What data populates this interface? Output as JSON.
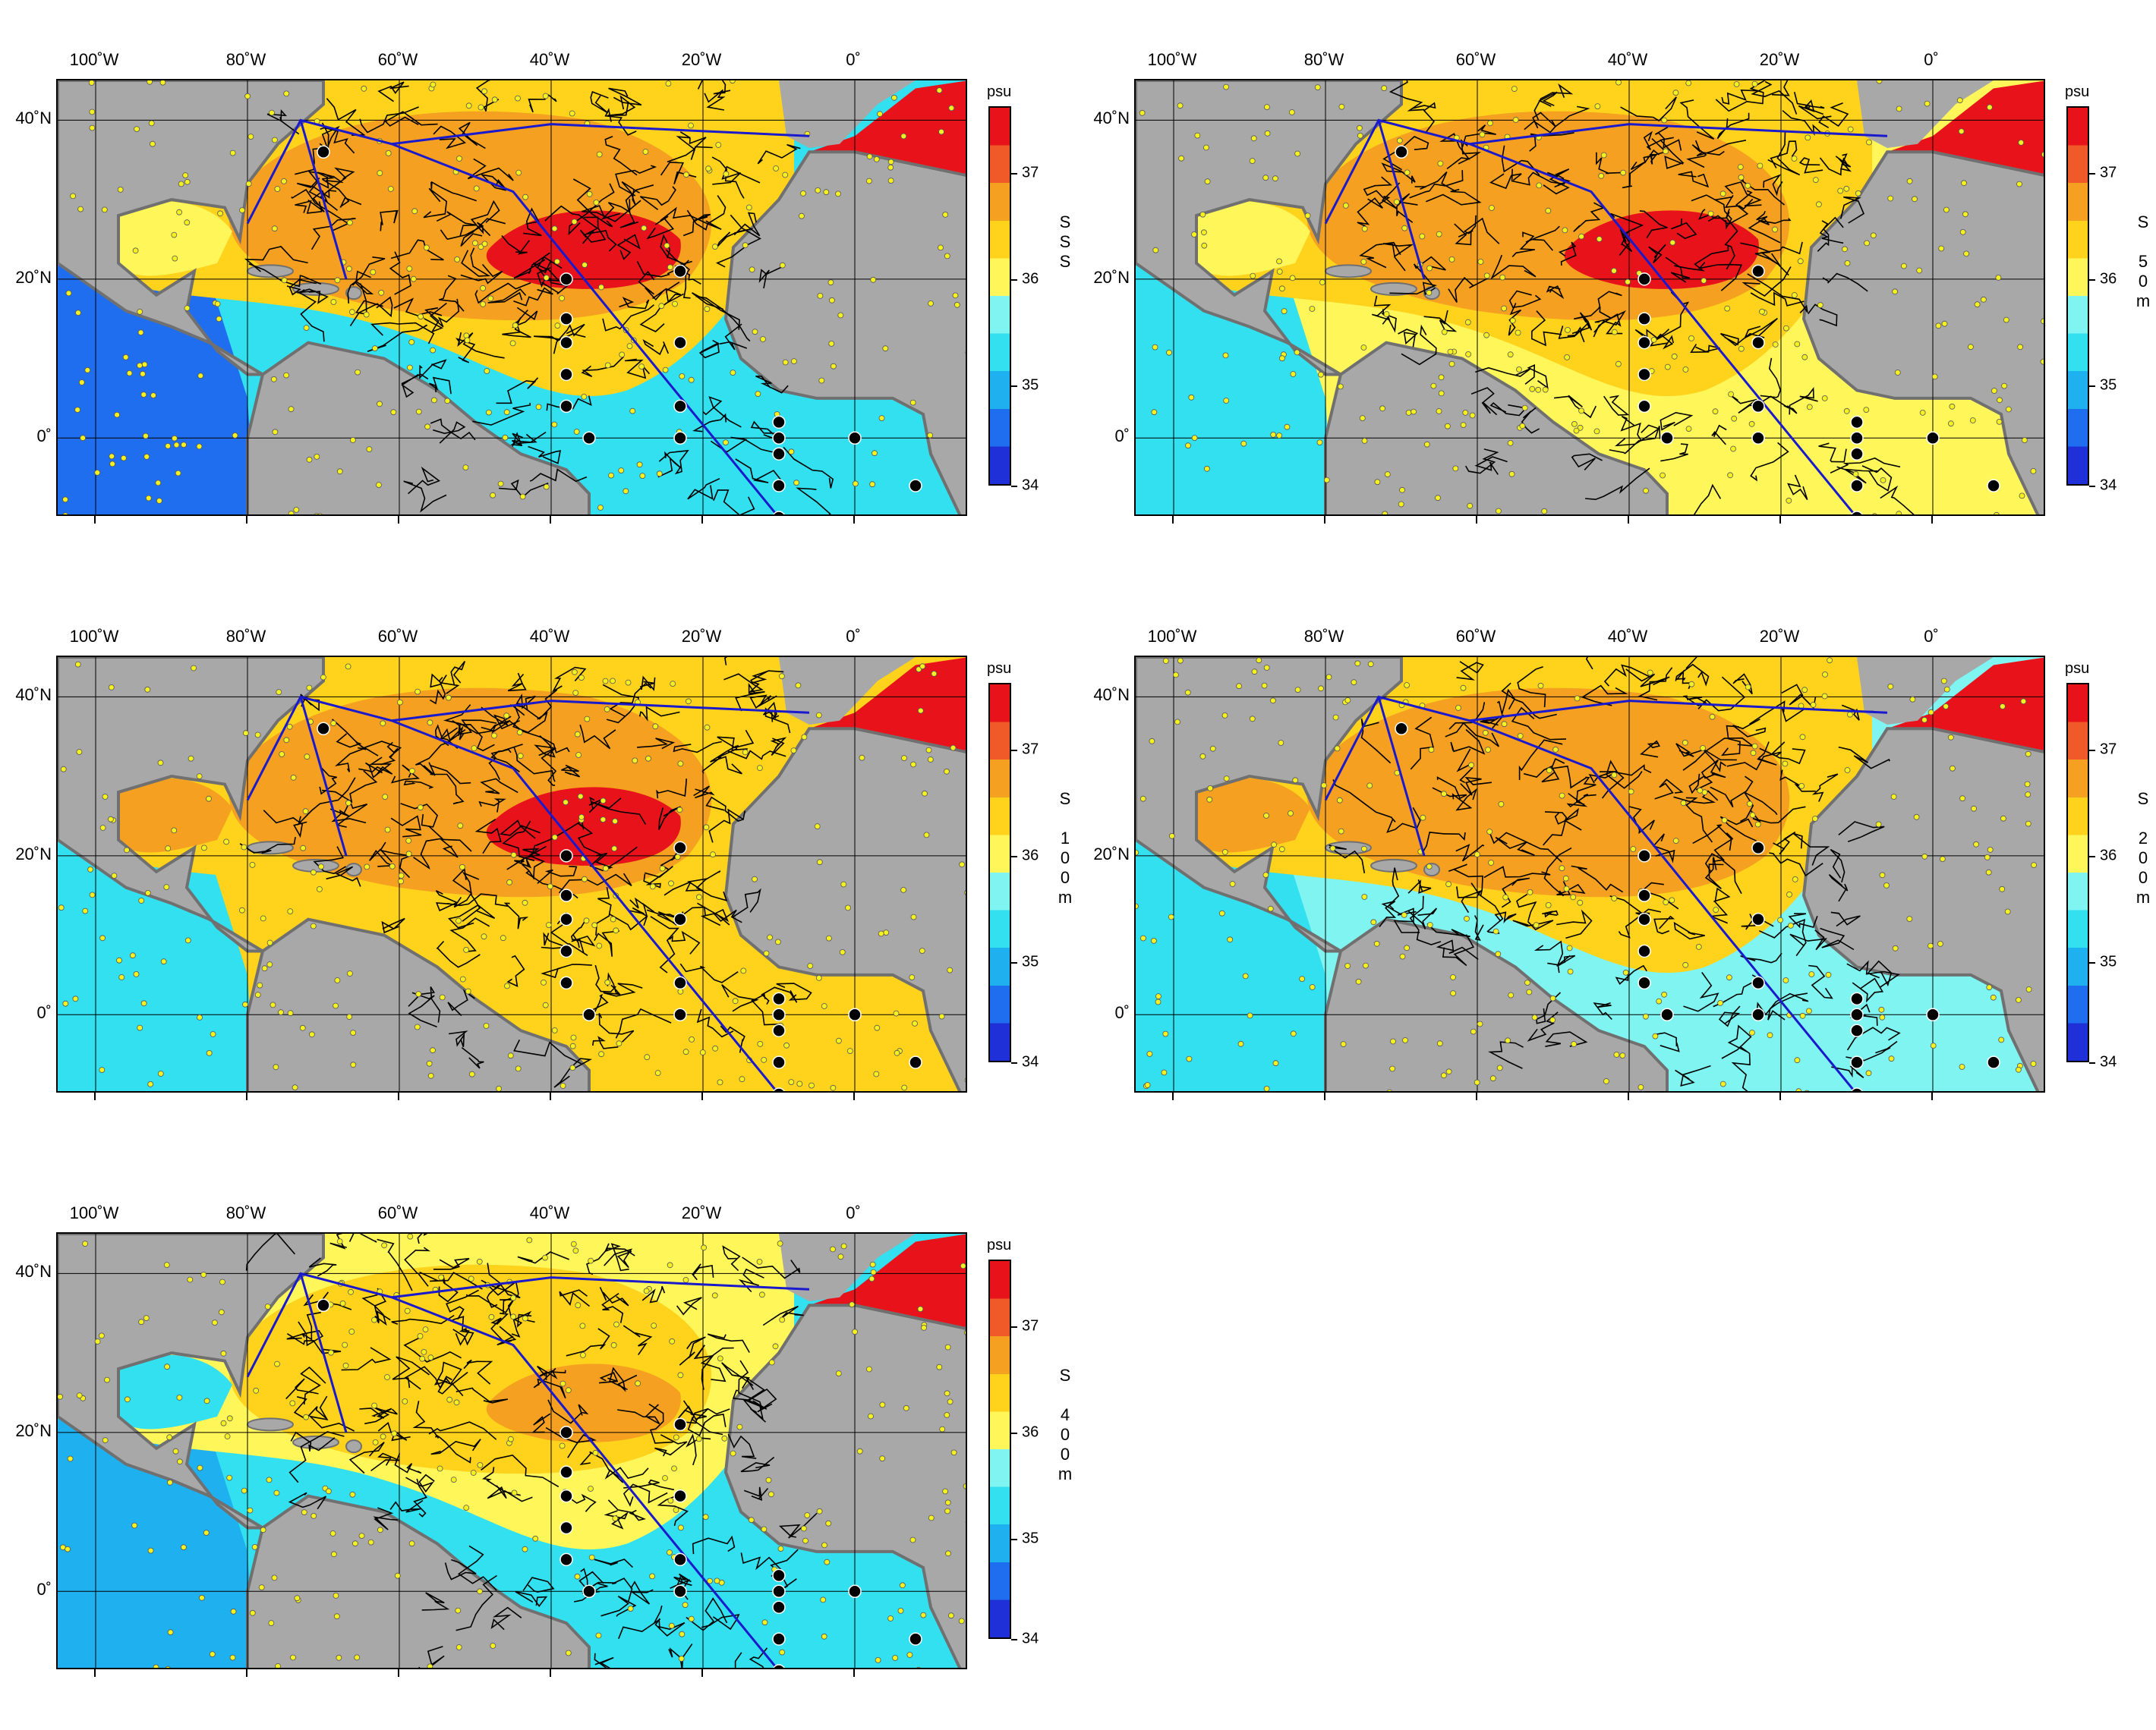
{
  "axes": {
    "lon_labels": [
      "100˚W",
      "80˚W",
      "60˚W",
      "40˚W",
      "20˚W",
      "0˚"
    ],
    "lat_labels": [
      "40˚N",
      "20˚N",
      "0˚"
    ]
  },
  "colorbar": {
    "unit": "psu",
    "ticks": [
      "37",
      "36",
      "35",
      "34"
    ],
    "colors": [
      "#e8131a",
      "#f05a28",
      "#f5a020",
      "#ffd21c",
      "#fff65a",
      "#7ff4f0",
      "#33e0f0",
      "#1fb0f0",
      "#1f6ef0",
      "#2030d8"
    ]
  },
  "panels": [
    {
      "id": "sss",
      "label": [
        "S",
        "S",
        "S"
      ]
    },
    {
      "id": "s50",
      "label": [
        "S",
        "",
        "5",
        "0",
        "m"
      ]
    },
    {
      "id": "s100",
      "label": [
        "S",
        "",
        "1",
        "0",
        "0",
        "m"
      ]
    },
    {
      "id": "s200",
      "label": [
        "S",
        "",
        "2",
        "0",
        "0",
        "m"
      ]
    },
    {
      "id": "s400",
      "label": [
        "S",
        "",
        "4",
        "0",
        "0",
        "m"
      ]
    }
  ],
  "legend_colors": {
    "land": "#a8a8a8",
    "shelf": "#707070",
    "track": "#000000",
    "buoy": "#f5f020",
    "mooring": "#000000",
    "section": "#1a1acc"
  }
}
